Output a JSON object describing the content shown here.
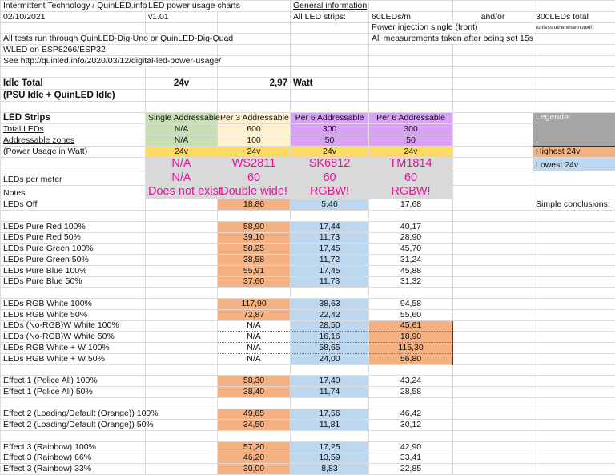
{
  "header": {
    "company": "Intermittent Technology / QuinLED.info",
    "chart_title": "LED power usage charts",
    "general_info": "General information",
    "date": "02/10/2021",
    "version": "v1.01",
    "all_led_strips": "All LED strips:",
    "leds_per_m": "60LEDs/m",
    "and_or": "and/or",
    "leds_total": "300LEDs total",
    "power_injection": "Power injection single (front)",
    "unless_noted": "(unless otherwise noted!)",
    "tests_note": "All tests run through QuinLED-Dig-Uno or QuinLED-Dig-Quad",
    "measurements_note": "All measurements taken after being set 15s",
    "wled_note": "WLED on ESP8266/ESP32",
    "see_note": "See http://quinled.info/2020/03/12/digital-led-power-usage/"
  },
  "idle": {
    "label": "Idle Total",
    "voltage": "24v",
    "value": "2,97",
    "unit": "Watt",
    "sub": "(PSU Idle + QuinLED Idle)"
  },
  "strips": {
    "labels": {
      "led_strips": "LED Strips",
      "total_leds": "Total LEDs",
      "zones": "Addressable zones",
      "power": "(Power Usage in Watt)",
      "leds_per_meter": "LEDs per meter",
      "notes": "Notes"
    },
    "columns": [
      {
        "type": "Single Addressable",
        "total_leds": "N/A",
        "zones": "N/A",
        "voltage": "24v",
        "chip": "N/A",
        "leds_per_meter": "N/A",
        "notes": "Does not exist"
      },
      {
        "type": "Per 3 Addressable",
        "total_leds": "600",
        "zones": "100",
        "voltage": "24v",
        "chip": "WS2811",
        "leds_per_meter": "60",
        "notes": "Double wide!"
      },
      {
        "type": "Per 6 Addressable",
        "total_leds": "300",
        "zones": "50",
        "voltage": "24v",
        "chip": "SK6812",
        "leds_per_meter": "60",
        "notes": "RGBW!"
      },
      {
        "type": "Per 6 Addressable",
        "total_leds": "300",
        "zones": "50",
        "voltage": "24v",
        "chip": "TM1814",
        "leds_per_meter": "60",
        "notes": "RGBW!"
      }
    ]
  },
  "legend": {
    "title": "Legenda:",
    "highest": "Highest 24v",
    "lowest": "Lowest 24v",
    "conclusions": "Simple conclusions:"
  },
  "colors": {
    "highest": "#f4b183",
    "lowest": "#bdd7ee",
    "single": "#c6e0b4",
    "per3": "#fff2cc",
    "per6": "#dba0f7",
    "voltage": "#ffd966",
    "chip_rows": "#d9d9d9",
    "chip_text": "#e3169a"
  },
  "leds_off": {
    "label": "LEDs Off",
    "values": [
      "",
      "18,86",
      "5,46",
      "17,68"
    ],
    "highest": 1,
    "lowest": 2
  },
  "measurements": [
    [
      {
        "label": "LEDs Pure Red 100%",
        "values": [
          "",
          "58,90",
          "17,44",
          "40,17"
        ],
        "highest": 1,
        "lowest": 2
      },
      {
        "label": "LEDs Pure Red 50%",
        "values": [
          "",
          "39,10",
          "11,73",
          "28,90"
        ],
        "highest": 1,
        "lowest": 2
      },
      {
        "label": "LEDs Pure Green 100%",
        "values": [
          "",
          "58,25",
          "17,45",
          "45,70"
        ],
        "highest": 1,
        "lowest": 2
      },
      {
        "label": "LEDs Pure Green 50%",
        "values": [
          "",
          "38,58",
          "11,72",
          "31,24"
        ],
        "highest": 1,
        "lowest": 2
      },
      {
        "label": "LEDs Pure Blue 100%",
        "values": [
          "",
          "55,91",
          "17,45",
          "45,88"
        ],
        "highest": 1,
        "lowest": 2
      },
      {
        "label": "LEDs Pure Blue 50%",
        "values": [
          "",
          "37,60",
          "11,73",
          "31,32"
        ],
        "highest": 1,
        "lowest": 2
      }
    ],
    [
      {
        "label": "LEDs RGB White 100%",
        "values": [
          "",
          "117,90",
          "38,63",
          "94,58"
        ],
        "highest": 1,
        "lowest": 2
      },
      {
        "label": "LEDs RGB White 50%",
        "values": [
          "",
          "72,87",
          "22,42",
          "55,60"
        ],
        "highest": 1,
        "lowest": 2
      },
      {
        "label": "LEDs (No-RGB)W White 100%",
        "values": [
          "",
          "N/A",
          "28,50",
          "45,61"
        ],
        "highest": 3,
        "lowest": 2
      },
      {
        "label": "LEDs (No-RGB)W White 50%",
        "values": [
          "",
          "N/A",
          "16,16",
          "18,90"
        ],
        "highest": 3,
        "lowest": 2
      },
      {
        "label": "LEDs RGB White + W 100%",
        "values": [
          "",
          "N/A",
          "58,65",
          "115,30"
        ],
        "highest": 3,
        "lowest": 2
      },
      {
        "label": "LEDs RGB White + W 50%",
        "values": [
          "",
          "N/A",
          "24,00",
          "56,80"
        ],
        "highest": 3,
        "lowest": 2
      }
    ],
    [
      {
        "label": "Effect 1 (Police All) 100%",
        "values": [
          "",
          "58,30",
          "17,40",
          "43,24"
        ],
        "highest": 1,
        "lowest": 2
      },
      {
        "label": "Effect 1 (Police All) 50%",
        "values": [
          "",
          "38,40",
          "11,74",
          "28,58"
        ],
        "highest": 1,
        "lowest": 2
      }
    ],
    [
      {
        "label": "Effect 2 (Loading/Default (Orange)) 100%",
        "values": [
          "",
          "49,85",
          "17,56",
          "46,42"
        ],
        "highest": 1,
        "lowest": 2
      },
      {
        "label": "Effect 2 (Loading/Default (Orange)) 50%",
        "values": [
          "",
          "34,50",
          "11,81",
          "30,12"
        ],
        "highest": 1,
        "lowest": 2
      }
    ],
    [
      {
        "label": "Effect 3 (Rainbow) 100%",
        "values": [
          "",
          "57,20",
          "17,25",
          "42,90"
        ],
        "highest": 1,
        "lowest": 2
      },
      {
        "label": "Effect 3 (Rainbow) 66%",
        "values": [
          "",
          "46,20",
          "13,59",
          "33,41"
        ],
        "highest": 1,
        "lowest": 2
      },
      {
        "label": "Effect 3 (Rainbow) 33%",
        "values": [
          "",
          "30,00",
          "8,83",
          "22,85"
        ],
        "highest": 1,
        "lowest": 2
      }
    ]
  ]
}
